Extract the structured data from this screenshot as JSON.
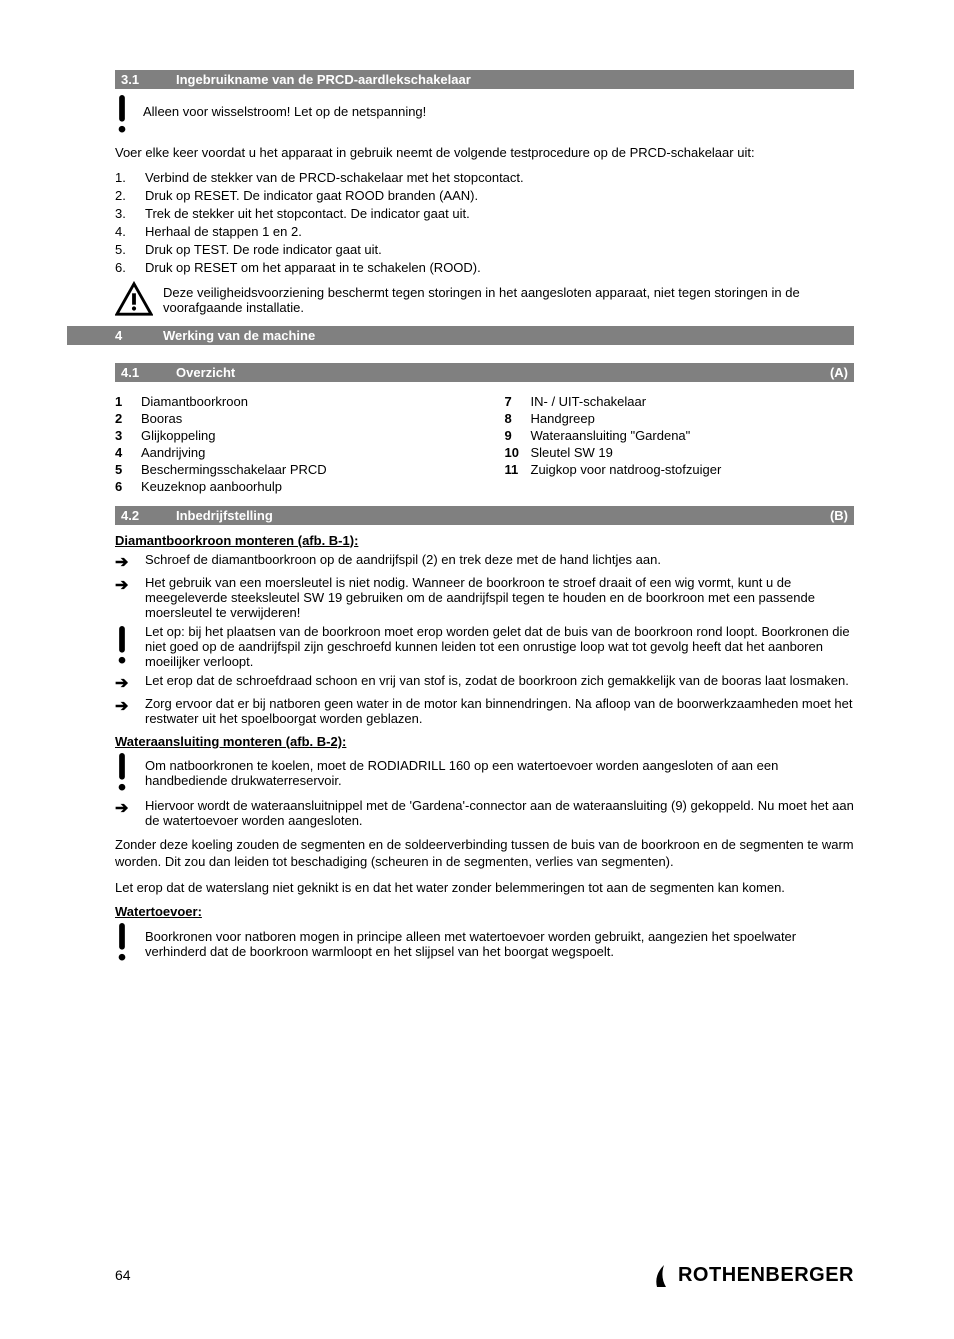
{
  "sections": {
    "s31": {
      "num": "3.1",
      "title": "Ingebruikname van de PRCD-aardlekschakelaar"
    },
    "s4": {
      "num": "4",
      "title": "Werking van de machine"
    },
    "s41": {
      "num": "4.1",
      "title": "Overzicht",
      "ref": "(A)"
    },
    "s42": {
      "num": "4.2",
      "title": "Inbedrijfstelling",
      "ref": "(B)"
    }
  },
  "s31_block": {
    "intro1a": "Alleen voor wisselstroom! Let op de netspanning!",
    "intro2": "Voer elke keer voordat u het apparaat in gebruik neemt de volgende testprocedure op de PRCD-schakelaar uit:",
    "steps": [
      {
        "n": "1.",
        "t": "Verbind de stekker van de PRCD-schakelaar met het stopcontact."
      },
      {
        "n": "2.",
        "t": "Druk op RESET. De indicator gaat ROOD branden (AAN)."
      },
      {
        "n": "3.",
        "t": "Trek de stekker uit het stopcontact. De indicator gaat uit."
      },
      {
        "n": "4.",
        "t": "Herhaal de stappen 1 en 2."
      },
      {
        "n": "5.",
        "t": "Druk op TEST. De rode indicator gaat uit."
      },
      {
        "n": "6.",
        "t": "Druk op RESET om het apparaat in te schakelen (ROOD)."
      }
    ],
    "warn": "Deze veiligheidsvoorziening beschermt tegen storingen in het aangesloten apparaat, niet tegen storingen in de voorafgaande installatie."
  },
  "overview": {
    "left": [
      {
        "n": "1",
        "t": "Diamantboorkroon"
      },
      {
        "n": "2",
        "t": "Booras"
      },
      {
        "n": "3",
        "t": "Glijkoppeling"
      },
      {
        "n": "4",
        "t": "Aandrijving"
      },
      {
        "n": "5",
        "t": "Beschermingsschakelaar PRCD"
      },
      {
        "n": "6",
        "t": "Keuzeknop aanboorhulp"
      }
    ],
    "right": [
      {
        "n": "7",
        "t": "IN- / UIT-schakelaar"
      },
      {
        "n": "8",
        "t": "Handgreep"
      },
      {
        "n": "9",
        "t": "Wateraansluiting \"Gardena\""
      },
      {
        "n": "10",
        "t": "Sleutel SW 19"
      },
      {
        "n": "11",
        "t": "Zuigkop voor natdroog-stofzuiger"
      }
    ]
  },
  "s42_block": {
    "h1": "Diamantboorkroon monteren (afb. B-1):",
    "a1": "Schroef de diamantboorkroon op de aandrijfspil (2) en trek deze met de hand lichtjes aan.",
    "a2": "Het gebruik van een moersleutel is niet nodig. Wanneer de boorkroon te stroef draait of een wig vormt, kunt u de meegeleverde steeksleutel SW 19 gebruiken om de aandrijfspil tegen te houden en de boorkroon met een passende moersleutel te verwijderen!",
    "note1": "Let op: bij het plaatsen van de boorkroon moet erop worden gelet dat de buis van de boorkroon rond loopt. Boorkronen die niet goed op de aandrijfspil zijn geschroefd kunnen leiden tot een onrustige loop wat tot gevolg heeft dat het aanboren moeilijker verloopt.",
    "a3": "Let erop dat de schroefdraad schoon en vrij van stof is, zodat de boorkroon zich gemakkelijk van de booras laat losmaken.",
    "a4": "Zorg ervoor dat er bij natboren geen water in de motor kan binnendringen. Na afloop van de boorwerkzaamheden moet het restwater uit het spoelboorgat worden geblazen.",
    "h2": "Wateraansluiting monteren (afb. B-2):",
    "note2": "Om natboorkronen te koelen, moet de RODIADRILL 160 op een watertoevoer worden aangesloten of aan een handbediende drukwaterreservoir.",
    "a5": "Hiervoor wordt de wateraansluitnippel met de 'Gardena'-connector aan de wateraansluiting (9) gekoppeld. Nu moet het aan de watertoevoer worden aangesloten.",
    "p1": "Zonder deze koeling zouden de segmenten en de soldeerverbinding tussen de buis van de boorkroon en de segmenten te warm worden. Dit zou dan leiden tot beschadiging (scheuren in de segmenten, verlies van segmenten).",
    "p2": "Let erop dat de waterslang niet geknikt is en dat het water zonder belemmeringen tot aan de segmenten kan komen.",
    "h3": "Watertoevoer:",
    "note3": "Boorkronen voor natboren mogen in principe alleen met watertoevoer worden gebruikt, aangezien het spoelwater verhinderd dat de boorkroon warmloopt en het slijpsel van het boorgat wegspoelt."
  },
  "footer": {
    "pagenum": "64",
    "brand": "ROTHENBERGER"
  },
  "colors": {
    "barbg": "#808080",
    "bartext": "#ffffff"
  }
}
